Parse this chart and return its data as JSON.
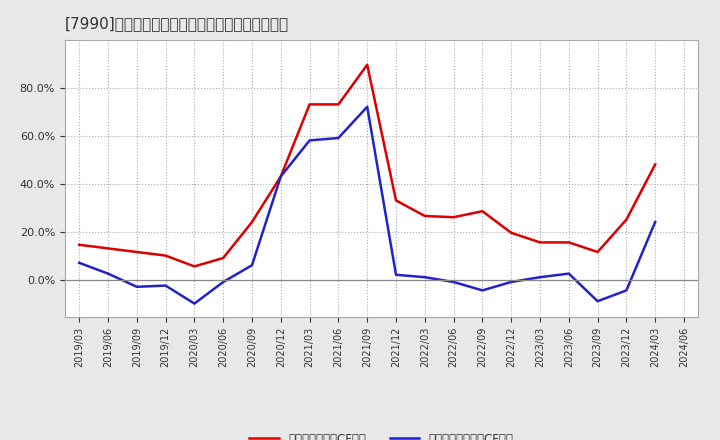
{
  "title": "[7990]　有利子負債キャッシュフロー比率の推移",
  "x_labels": [
    "2019/03",
    "2019/06",
    "2019/09",
    "2019/12",
    "2020/03",
    "2020/06",
    "2020/09",
    "2020/12",
    "2021/03",
    "2021/06",
    "2021/09",
    "2021/12",
    "2022/03",
    "2022/06",
    "2022/09",
    "2022/12",
    "2023/03",
    "2023/06",
    "2023/09",
    "2023/12",
    "2024/03",
    "2024/06"
  ],
  "red_values": [
    0.145,
    0.13,
    0.115,
    0.1,
    0.055,
    0.09,
    0.24,
    0.43,
    0.73,
    0.73,
    0.895,
    0.33,
    0.265,
    0.26,
    0.285,
    0.195,
    0.155,
    0.155,
    0.115,
    0.25,
    0.48,
    null
  ],
  "blue_values": [
    0.07,
    0.025,
    -0.03,
    -0.025,
    -0.1,
    -0.01,
    0.06,
    0.43,
    0.58,
    0.59,
    0.72,
    0.02,
    0.01,
    -0.01,
    -0.045,
    -0.01,
    0.01,
    0.025,
    -0.09,
    -0.045,
    0.24,
    null
  ],
  "red_color": "#dd0000",
  "blue_color": "#2222cc",
  "bg_color": "#e8e8e8",
  "plot_bg_color": "#ffffff",
  "grid_color": "#aaaaaa",
  "legend_red": "有利子負債営業CF比率",
  "legend_blue": "有利子負債フリーCF比率",
  "ylim": [
    -0.155,
    1.0
  ],
  "yticks": [
    0.0,
    0.2,
    0.4,
    0.6,
    0.8
  ],
  "title_fontsize": 11
}
